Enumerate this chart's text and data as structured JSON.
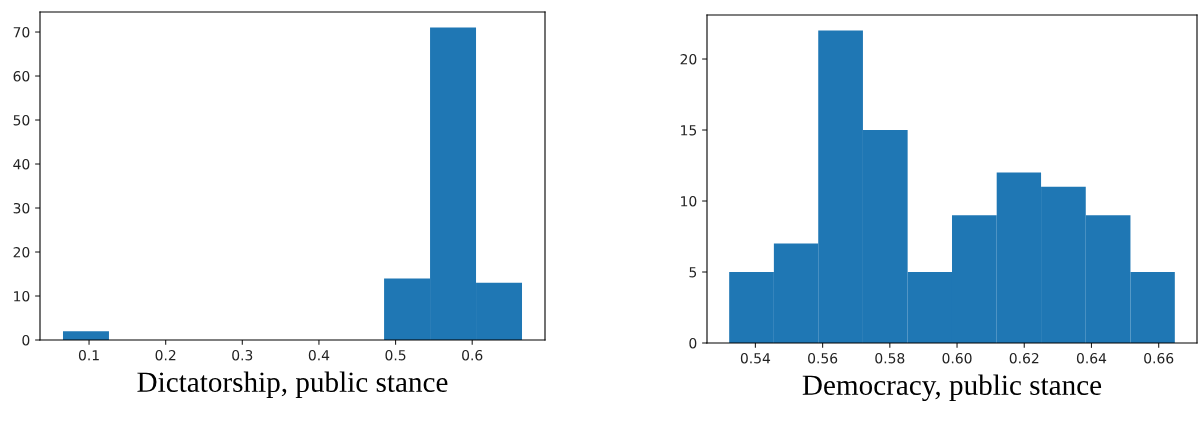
{
  "chart_data": [
    {
      "type": "histogram",
      "xlabel": "Dictatorship, public stance",
      "color": "#1f77b4",
      "bins": [
        0.066,
        0.126,
        0.485,
        0.545,
        0.605,
        0.665
      ],
      "values": [
        2,
        0,
        14,
        71,
        13
      ],
      "xlim": [
        0.036,
        0.695
      ],
      "xticks": [
        0.1,
        0.2,
        0.3,
        0.4,
        0.5,
        0.6
      ],
      "ylim": [
        0,
        74.55
      ],
      "yticks": [
        0,
        10,
        20,
        30,
        40,
        50,
        60,
        70
      ],
      "grid": false
    },
    {
      "type": "histogram",
      "xlabel": "Democracy, public stance",
      "color": "#1f77b4",
      "bins": [
        0.5322,
        0.5455,
        0.5587,
        0.572,
        0.5853,
        0.5985,
        0.6118,
        0.625,
        0.6383,
        0.6516,
        0.6648
      ],
      "values": [
        5,
        7,
        22,
        15,
        5,
        9,
        12,
        11,
        9,
        5
      ],
      "xlim": [
        0.5256,
        0.6714
      ],
      "xticks": [
        {
          "value": 0.54,
          "label": "0.54"
        },
        {
          "value": 0.56,
          "label": "0.56"
        },
        {
          "value": 0.58,
          "label": "0.58"
        },
        {
          "value": 0.6,
          "label": "0.60"
        },
        {
          "value": 0.62,
          "label": "0.62"
        },
        {
          "value": 0.64,
          "label": "0.64"
        },
        {
          "value": 0.66,
          "label": "0.66"
        }
      ],
      "ylim": [
        0,
        23.1
      ],
      "yticks": [
        0,
        5,
        10,
        15,
        20
      ],
      "grid": false
    }
  ]
}
